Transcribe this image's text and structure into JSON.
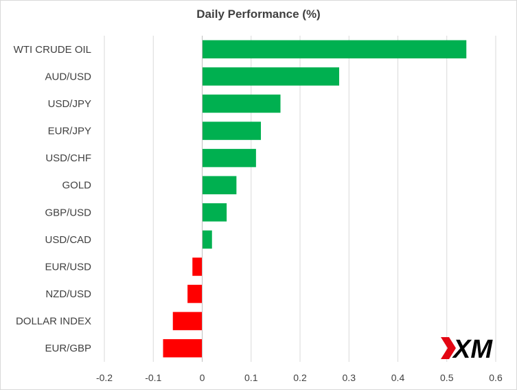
{
  "chart_data": {
    "type": "bar",
    "orientation": "horizontal",
    "title": "Daily Performance (%)",
    "xlabel": "",
    "ylabel": "",
    "categories": [
      "WTI CRUDE OIL",
      "AUD/USD",
      "USD/JPY",
      "EUR/JPY",
      "USD/CHF",
      "GOLD",
      "GBP/USD",
      "USD/CAD",
      "EUR/USD",
      "NZD/USD",
      "DOLLAR INDEX",
      "EUR/GBP"
    ],
    "values": [
      0.54,
      0.28,
      0.16,
      0.12,
      0.11,
      0.07,
      0.05,
      0.02,
      -0.02,
      -0.03,
      -0.06,
      -0.08
    ],
    "xlim": [
      -0.2,
      0.6
    ],
    "xticks": [
      "-0.2",
      "-0.1",
      "0",
      "0.1",
      "0.2",
      "0.3",
      "0.4",
      "0.5",
      "0.6"
    ],
    "grid": "vertical",
    "legend": "none",
    "colors": {
      "positive": "#00b050",
      "negative": "#ff0000",
      "grid": "#d9d9d9"
    }
  },
  "logo": {
    "text": "XM",
    "colors": {
      "mark": "#e30613",
      "text": "#000000"
    }
  }
}
